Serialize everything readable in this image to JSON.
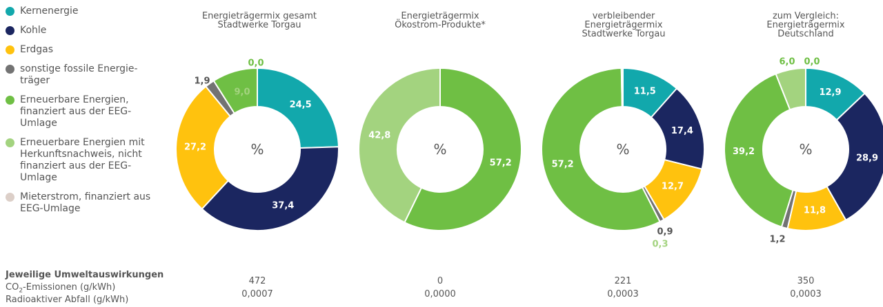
{
  "legend": [
    {
      "label": "Kernenergie",
      "color": "#12a8ac"
    },
    {
      "label": "Kohle",
      "color": "#1b2660"
    },
    {
      "label": "Erdgas",
      "color": "#ffc20e"
    },
    {
      "label": "sonstige fossile Energie-\nträger",
      "color": "#737373"
    },
    {
      "label": "Erneuerbare Energien,\nfinanziert aus der EEG-\nUmlage",
      "color": "#6fbf44"
    },
    {
      "label": "Erneuerbare Energien mit\nHerkunftsnachweis, nicht\nfinanziert aus der EEG-\nUmlage",
      "color": "#a3d37f"
    },
    {
      "label": "Mieterstrom, finanziert aus\nEEG-Umlage",
      "color": "#dccfc8"
    }
  ],
  "center_label": "%",
  "chart_data": [
    {
      "type": "pie",
      "title": "Energieträgermix gesamt\nStadtwerke Torgau",
      "categories": [
        "Kernenergie",
        "Kohle",
        "Erdgas",
        "sonstige fossile Energieträger",
        "Erneuerbare Energien, finanziert aus der EEG-Umlage",
        "Erneuerbare Energien mit Herkunftsnachweis, nicht finanziert aus der EEG-Umlage",
        "Mieterstrom, finanziert aus EEG-Umlage"
      ],
      "values": [
        24.5,
        37.4,
        27.2,
        1.9,
        9.0,
        0.0,
        0.0
      ],
      "labels": [
        "24,5",
        "37,4",
        "27,2",
        "1,9",
        "9,0",
        "0,0",
        ""
      ],
      "unit": "%"
    },
    {
      "type": "pie",
      "title": "Energieträgermix\nÖkostrom-Produkte*",
      "categories": [
        "Kernenergie",
        "Kohle",
        "Erdgas",
        "sonstige fossile Energieträger",
        "Erneuerbare Energien, finanziert aus der EEG-Umlage",
        "Erneuerbare Energien mit Herkunftsnachweis, nicht finanziert aus der EEG-Umlage",
        "Mieterstrom, finanziert aus EEG-Umlage"
      ],
      "values": [
        0,
        0,
        0,
        0,
        57.2,
        42.8,
        0
      ],
      "labels": [
        "",
        "",
        "",
        "",
        "57,2",
        "42,8",
        ""
      ],
      "unit": "%"
    },
    {
      "type": "pie",
      "title": "verbleibender\nEnergieträgermix\nStadtwerke Torgau",
      "categories": [
        "Kernenergie",
        "Kohle",
        "Erdgas",
        "sonstige fossile Energieträger",
        "Erneuerbare Energien, finanziert aus der EEG-Umlage",
        "Erneuerbare Energien mit Herkunftsnachweis, nicht finanziert aus der EEG-Umlage",
        "Mieterstrom, finanziert aus EEG-Umlage"
      ],
      "values": [
        11.5,
        17.4,
        12.7,
        0.9,
        57.2,
        0.3,
        0
      ],
      "labels": [
        "11,5",
        "17,4",
        "12,7",
        "0,9",
        "57,2",
        "0,3",
        ""
      ],
      "unit": "%"
    },
    {
      "type": "pie",
      "title": "zum Vergleich:\nEnergieträgermix\nDeutschland",
      "categories": [
        "Kernenergie",
        "Kohle",
        "Erdgas",
        "sonstige fossile Energieträger",
        "Erneuerbare Energien, finanziert aus der EEG-Umlage",
        "Erneuerbare Energien mit Herkunftsnachweis, nicht finanziert aus der EEG-Umlage",
        "Mieterstrom, finanziert aus EEG-Umlage"
      ],
      "values": [
        12.9,
        28.9,
        11.8,
        1.2,
        39.2,
        6.0,
        0.0
      ],
      "labels": [
        "12,9",
        "28,9",
        "11,8",
        "1,2",
        "39,2",
        "6,0",
        "0,0"
      ],
      "unit": "%"
    }
  ],
  "impacts": {
    "heading": "Jeweilige Umweltauswirkungen",
    "co2_prefix": "CO",
    "co2_sub": "2",
    "co2_suffix": "-Emissionen (g/kWh)",
    "waste_label": "Radioaktiver Abfall (g/kWh)",
    "values": [
      {
        "co2": "472",
        "waste": "0,0007"
      },
      {
        "co2": "0",
        "waste": "0,0000"
      },
      {
        "co2": "221",
        "waste": "0,0003"
      },
      {
        "co2": "350",
        "waste": "0,0003"
      }
    ]
  }
}
